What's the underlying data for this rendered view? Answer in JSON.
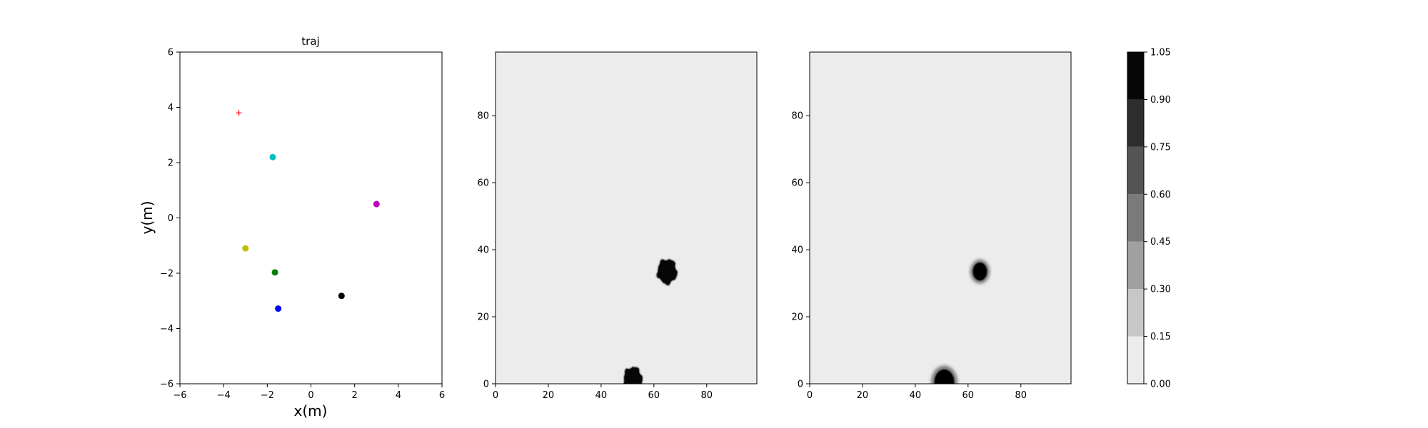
{
  "chart_data": [
    {
      "type": "scatter",
      "title": "traj",
      "xlabel": "x(m)",
      "ylabel": "y(m)",
      "xlim": [
        -6,
        6
      ],
      "ylim": [
        -6,
        6
      ],
      "xticks": [
        -6,
        -4,
        -2,
        0,
        2,
        4,
        6
      ],
      "yticks": [
        -6,
        -4,
        -2,
        0,
        2,
        4,
        6
      ],
      "grid": false,
      "markers": [
        {
          "kind": "plus",
          "color": "#ff0000",
          "x": -3.3,
          "y": 3.8
        },
        {
          "kind": "dot",
          "color": "#00bfbf",
          "x": -1.75,
          "y": 2.2
        },
        {
          "kind": "dot",
          "color": "#bf00bf",
          "x": 3.0,
          "y": 0.5
        },
        {
          "kind": "dot",
          "color": "#bfbf00",
          "x": -3.0,
          "y": -1.1
        },
        {
          "kind": "dot",
          "color": "#008000",
          "x": -1.65,
          "y": -1.97
        },
        {
          "kind": "dot",
          "color": "#000000",
          "x": 1.4,
          "y": -2.82
        },
        {
          "kind": "dot",
          "color": "#0000ff",
          "x": -1.5,
          "y": -3.28
        }
      ]
    },
    {
      "type": "heatmap",
      "title": "",
      "xlim": [
        0,
        99
      ],
      "ylim": [
        0,
        99
      ],
      "xticks": [
        0,
        20,
        40,
        60,
        80
      ],
      "yticks": [
        0,
        20,
        40,
        60,
        80
      ],
      "background_level": 0.075,
      "blobs": [
        {
          "cx": 65,
          "cy": 33.5,
          "r": 3.6,
          "edge": "sharp"
        },
        {
          "cx": 52,
          "cy": 1.5,
          "r": 3.4,
          "edge": "sharp"
        }
      ]
    },
    {
      "type": "heatmap",
      "title": "",
      "xlim": [
        0,
        99
      ],
      "ylim": [
        0,
        99
      ],
      "xticks": [
        0,
        20,
        40,
        60,
        80
      ],
      "yticks": [
        0,
        20,
        40,
        60,
        80
      ],
      "background_level": 0.075,
      "blobs": [
        {
          "cx": 64.5,
          "cy": 33.5,
          "r": 3.3,
          "edge": "soft"
        },
        {
          "cx": 51,
          "cy": 0.5,
          "r": 4.6,
          "edge": "soft"
        }
      ]
    }
  ],
  "colorbar": {
    "min": 0.0,
    "max": 1.05,
    "levels": [
      0.0,
      0.15,
      0.3,
      0.45,
      0.6,
      0.75,
      0.9,
      1.05
    ],
    "tick_labels": [
      "0.00",
      "0.15",
      "0.30",
      "0.45",
      "0.60",
      "0.75",
      "0.90",
      "1.05"
    ],
    "colors": [
      "#ececec",
      "#c7c7c7",
      "#a0a0a0",
      "#7a7a7a",
      "#545454",
      "#2d2d2d",
      "#060606"
    ]
  }
}
